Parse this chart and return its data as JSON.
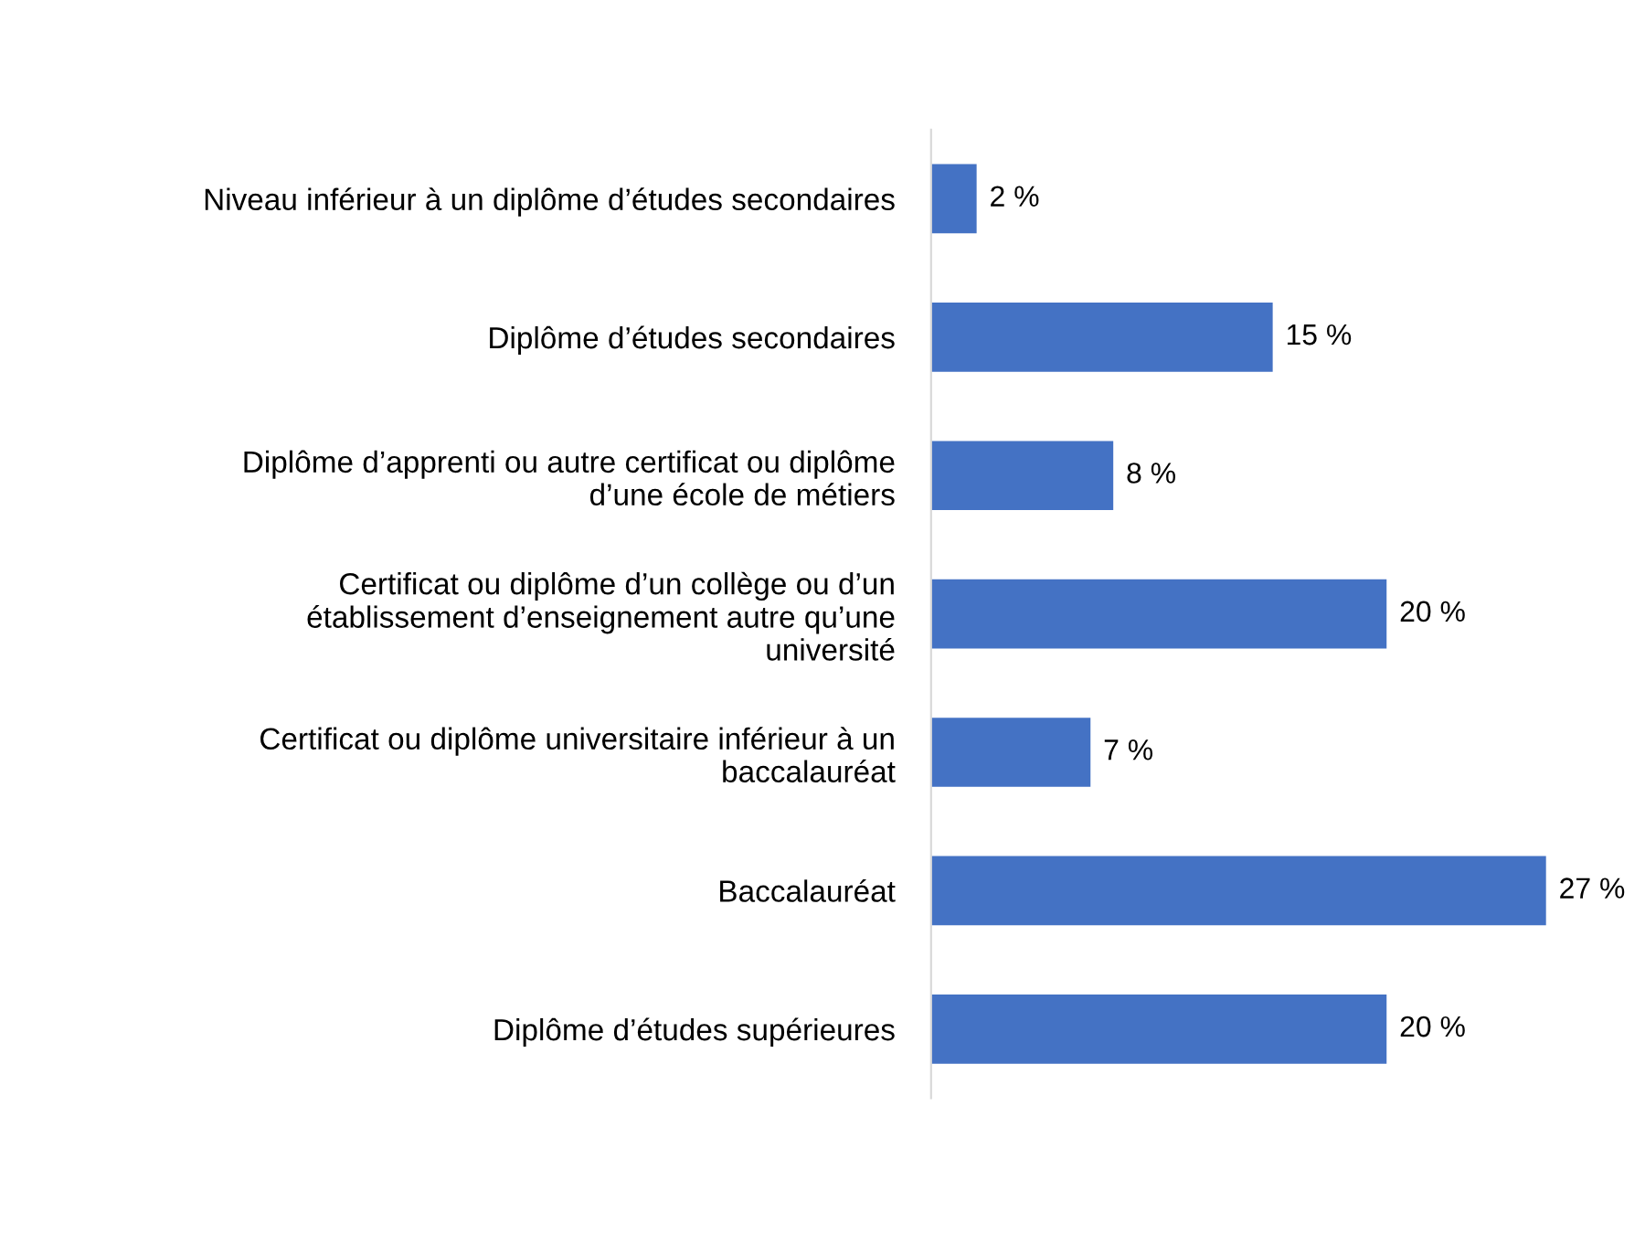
{
  "chart_data": {
    "type": "bar",
    "orientation": "horizontal",
    "categories": [
      "Niveau inférieur à un diplôme d’études secondaires",
      "Diplôme d’études secondaires",
      "Diplôme d’apprenti ou autre certificat ou diplôme\nd’une école de métiers",
      "Certificat ou diplôme d’un collège ou d’un\nétablissement d’enseignement autre qu’une\nuniversité",
      "Certificat ou diplôme universitaire inférieur à un\nbaccalauréat",
      "Baccalauréat",
      "Diplôme d’études supérieures"
    ],
    "values": [
      2,
      15,
      8,
      20,
      7,
      27,
      20
    ],
    "value_labels": [
      "2 %",
      "15 %",
      "8 %",
      "20 %",
      "7 %",
      "27 %",
      "20 %"
    ],
    "color": "#4472c4",
    "grid": false,
    "legend": false
  }
}
